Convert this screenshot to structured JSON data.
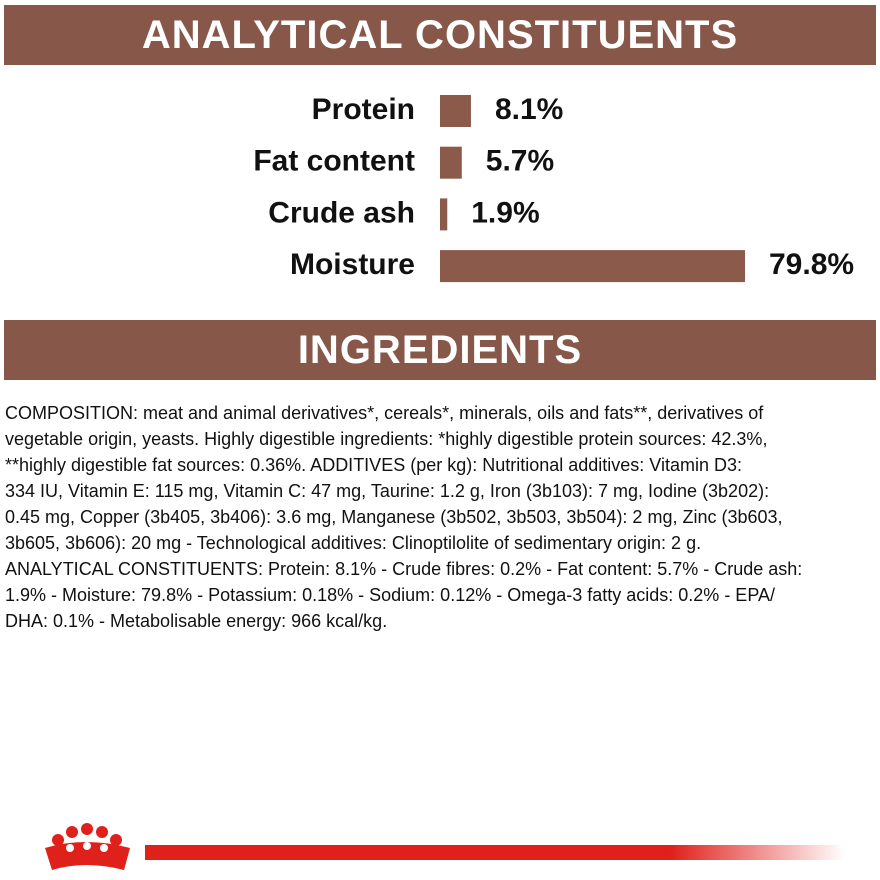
{
  "header": {
    "title": "ANALYTICAL CONSTITUENTS"
  },
  "chart_data": {
    "type": "bar",
    "orientation": "horizontal",
    "categories": [
      "Protein",
      "Fat content",
      "Crude ash",
      "Moisture"
    ],
    "values": [
      8.1,
      5.7,
      1.9,
      79.8
    ],
    "value_labels": [
      "8.1%",
      "5.7%",
      "1.9%",
      "79.8%"
    ],
    "color": "#8b5a4b"
  },
  "ingredients": {
    "title": "INGREDIENTS",
    "lines": [
      "COMPOSITION: meat and animal derivatives*, cereals*, minerals, oils and fats**, derivatives of",
      "vegetable origin, yeasts. Highly digestible ingredients: *highly digestible protein sources: 42.3%,",
      "**highly digestible fat sources: 0.36%. ADDITIVES (per kg): Nutritional additives: Vitamin D3:",
      "334 IU, Vitamin E: 115 mg, Vitamin C: 47 mg, Taurine: 1.2 g, Iron (3b103): 7 mg, Iodine (3b202):",
      "0.45 mg, Copper (3b405, 3b406): 3.6 mg, Manganese (3b502, 3b503, 3b504): 2 mg, Zinc (3b603,",
      "3b605, 3b606): 20 mg - Technological additives: Clinoptilolite of sedimentary origin: 2 g.",
      "ANALYTICAL CONSTITUENTS: Protein: 8.1% - Crude fibres: 0.2% - Fat content: 5.7% - Crude ash:",
      "1.9% - Moisture: 79.8% - Potassium: 0.18% - Sodium: 0.12% - Omega-3 fatty acids: 0.2% - EPA/",
      "DHA: 0.1% - Metabolisable energy: 966 kcal/kg."
    ]
  }
}
